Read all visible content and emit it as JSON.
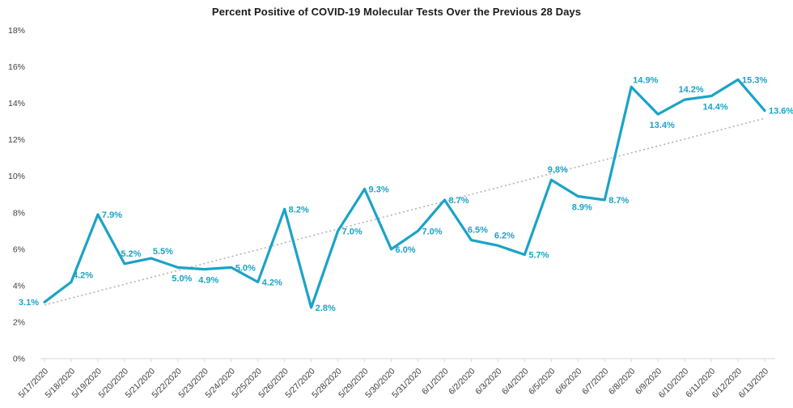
{
  "chart_data": {
    "type": "line",
    "title": "Percent Positive of COVID-19 Molecular Tests Over the Previous 28 Days",
    "categories": [
      "5/17/2020",
      "5/18/2020",
      "5/19/2020",
      "5/20/2020",
      "5/21/2020",
      "5/22/2020",
      "5/23/2020",
      "5/24/2020",
      "5/25/2020",
      "5/26/2020",
      "5/27/2020",
      "5/28/2020",
      "5/29/2020",
      "5/30/2020",
      "5/31/2020",
      "6/1/2020",
      "6/2/2020",
      "6/3/2020",
      "6/4/2020",
      "6/5/2020",
      "6/6/2020",
      "6/7/2020",
      "6/8/2020",
      "6/9/2020",
      "6/10/2020",
      "6/11/2020",
      "6/12/2020",
      "6/13/2020"
    ],
    "values": [
      3.1,
      4.2,
      7.9,
      5.2,
      5.5,
      5.0,
      4.9,
      5.0,
      4.2,
      8.2,
      2.8,
      7.0,
      9.3,
      6.0,
      7.0,
      8.7,
      6.5,
      6.2,
      5.7,
      9.8,
      8.9,
      8.7,
      14.9,
      13.4,
      14.2,
      14.4,
      15.3,
      13.6
    ],
    "point_labels": [
      "3.1%",
      "4.2%",
      "7.9%",
      "5.2%",
      "5.5%",
      "5.0%",
      "4.9%",
      "5.0%",
      "4.2%",
      "8.2%",
      "2.8%",
      "7.0%",
      "9.3%",
      "6.0%",
      "7.0%",
      "8.7%",
      "6.5%",
      "6.2%",
      "5.7%",
      "9.8%",
      "8.9%",
      "8.7%",
      "14.9%",
      "13.4%",
      "14.2%",
      "14.4%",
      "15.3%",
      "13.6%"
    ],
    "label_positions": [
      "left",
      "above-right",
      "right",
      "above",
      "above-right",
      "below",
      "below",
      "right",
      "right",
      "right",
      "right",
      "right",
      "right",
      "right",
      "right",
      "right",
      "above",
      "above",
      "right",
      "above",
      "below",
      "right",
      "above-right",
      "below",
      "above",
      "below",
      "right",
      "right"
    ],
    "xlabel": "",
    "ylabel": "",
    "ylim": [
      0,
      18
    ],
    "y_tick_values": [
      0,
      2,
      4,
      6,
      8,
      10,
      12,
      14,
      16,
      18
    ],
    "y_ticks": [
      "0%",
      "2%",
      "4%",
      "6%",
      "8%",
      "10%",
      "12%",
      "14%",
      "16%",
      "18%"
    ],
    "grid": false,
    "legend": "none",
    "trendline": {
      "type": "linear",
      "style": "dotted"
    },
    "colors": {
      "series": "#1BA3C6",
      "point_labels": "#1BA3C6",
      "trendline": "#B3B3B3",
      "axis_line": "#D9D9D9",
      "tick_text": "#3C3C3C",
      "title_text": "#1A1A1A"
    }
  }
}
